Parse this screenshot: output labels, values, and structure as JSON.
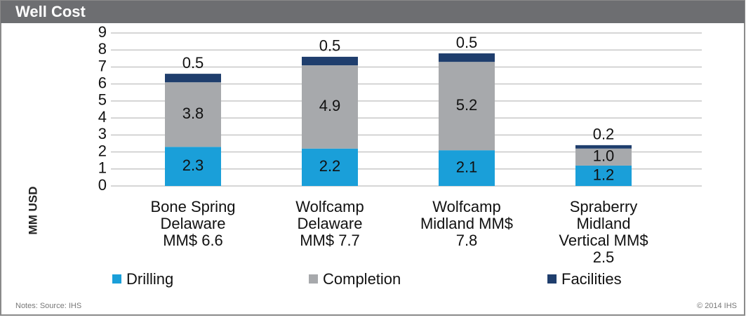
{
  "header": {
    "title": "Well Cost"
  },
  "chart_data": {
    "type": "stacked_bar",
    "y_label": "MM USD",
    "categories": [
      [
        "Bone Spring",
        "Delaware",
        "MM$ 6.6"
      ],
      [
        "Wolfcamp",
        "Delaware",
        "MM$ 7.7"
      ],
      [
        "Wolfcamp",
        "Midland MM$",
        "7.8"
      ],
      [
        "Spraberry",
        "Midland",
        "Vertical MM$",
        "2.5"
      ]
    ],
    "series": [
      {
        "name": "Drilling",
        "color": "#1a9fd9",
        "values": [
          2.3,
          2.2,
          2.1,
          1.2
        ]
      },
      {
        "name": "Completion",
        "color": "#a7a9ac",
        "values": [
          3.8,
          4.9,
          5.2,
          1.0
        ],
        "value_labels": [
          "3.8",
          "4.9",
          "5.2",
          "1.0"
        ]
      },
      {
        "name": "Facilities",
        "color": "#1f3e6d",
        "values": [
          0.5,
          0.5,
          0.5,
          0.2
        ]
      }
    ],
    "ylim": [
      0,
      9
    ],
    "yticks": [
      0,
      1,
      2,
      3,
      4,
      5,
      6,
      7,
      8,
      9
    ],
    "grid": true
  },
  "footer": {
    "notes": "Notes: Source: IHS",
    "copyright": "© 2014 IHS"
  }
}
